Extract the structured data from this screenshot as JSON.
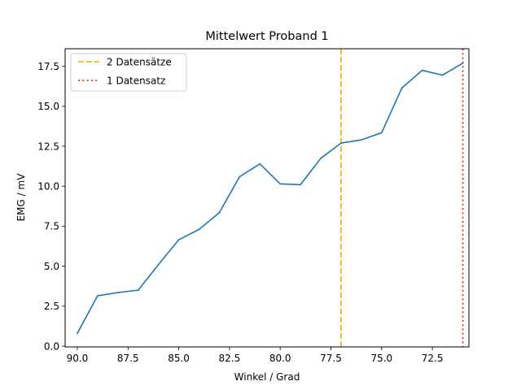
{
  "chart_data": {
    "type": "line",
    "title": "Mittelwert Proband 1",
    "xlabel": "Winkel / Grad",
    "ylabel": "EMG / mV",
    "xlim": [
      90.6,
      70.7
    ],
    "ylim": [
      -0.05,
      18.6
    ],
    "x_inverted": true,
    "grid": false,
    "legend_position": "top-left",
    "xticks": [
      90.0,
      87.5,
      85.0,
      82.5,
      80.0,
      77.5,
      75.0,
      72.5
    ],
    "yticks": [
      0.0,
      2.5,
      5.0,
      7.5,
      10.0,
      12.5,
      15.0,
      17.5
    ],
    "series": [
      {
        "color": "#1f77b4",
        "x": [
          90,
          89,
          88,
          87,
          86,
          85,
          84,
          83,
          82,
          81,
          80,
          79,
          78,
          77,
          76,
          75,
          74,
          73,
          72,
          71
        ],
        "y": [
          0.8,
          3.15,
          3.35,
          3.5,
          5.1,
          6.65,
          7.3,
          8.35,
          10.6,
          11.4,
          10.15,
          10.1,
          11.75,
          12.7,
          12.9,
          13.35,
          16.15,
          17.25,
          16.95,
          17.7
        ]
      }
    ],
    "vlines": [
      {
        "x": 77.0,
        "label": "2 Datensätze",
        "color": "#ffa500",
        "style": "dashed"
      },
      {
        "x": 71.0,
        "label": "1 Datensatz",
        "color": "#ff0000",
        "style": "dotted"
      }
    ]
  }
}
